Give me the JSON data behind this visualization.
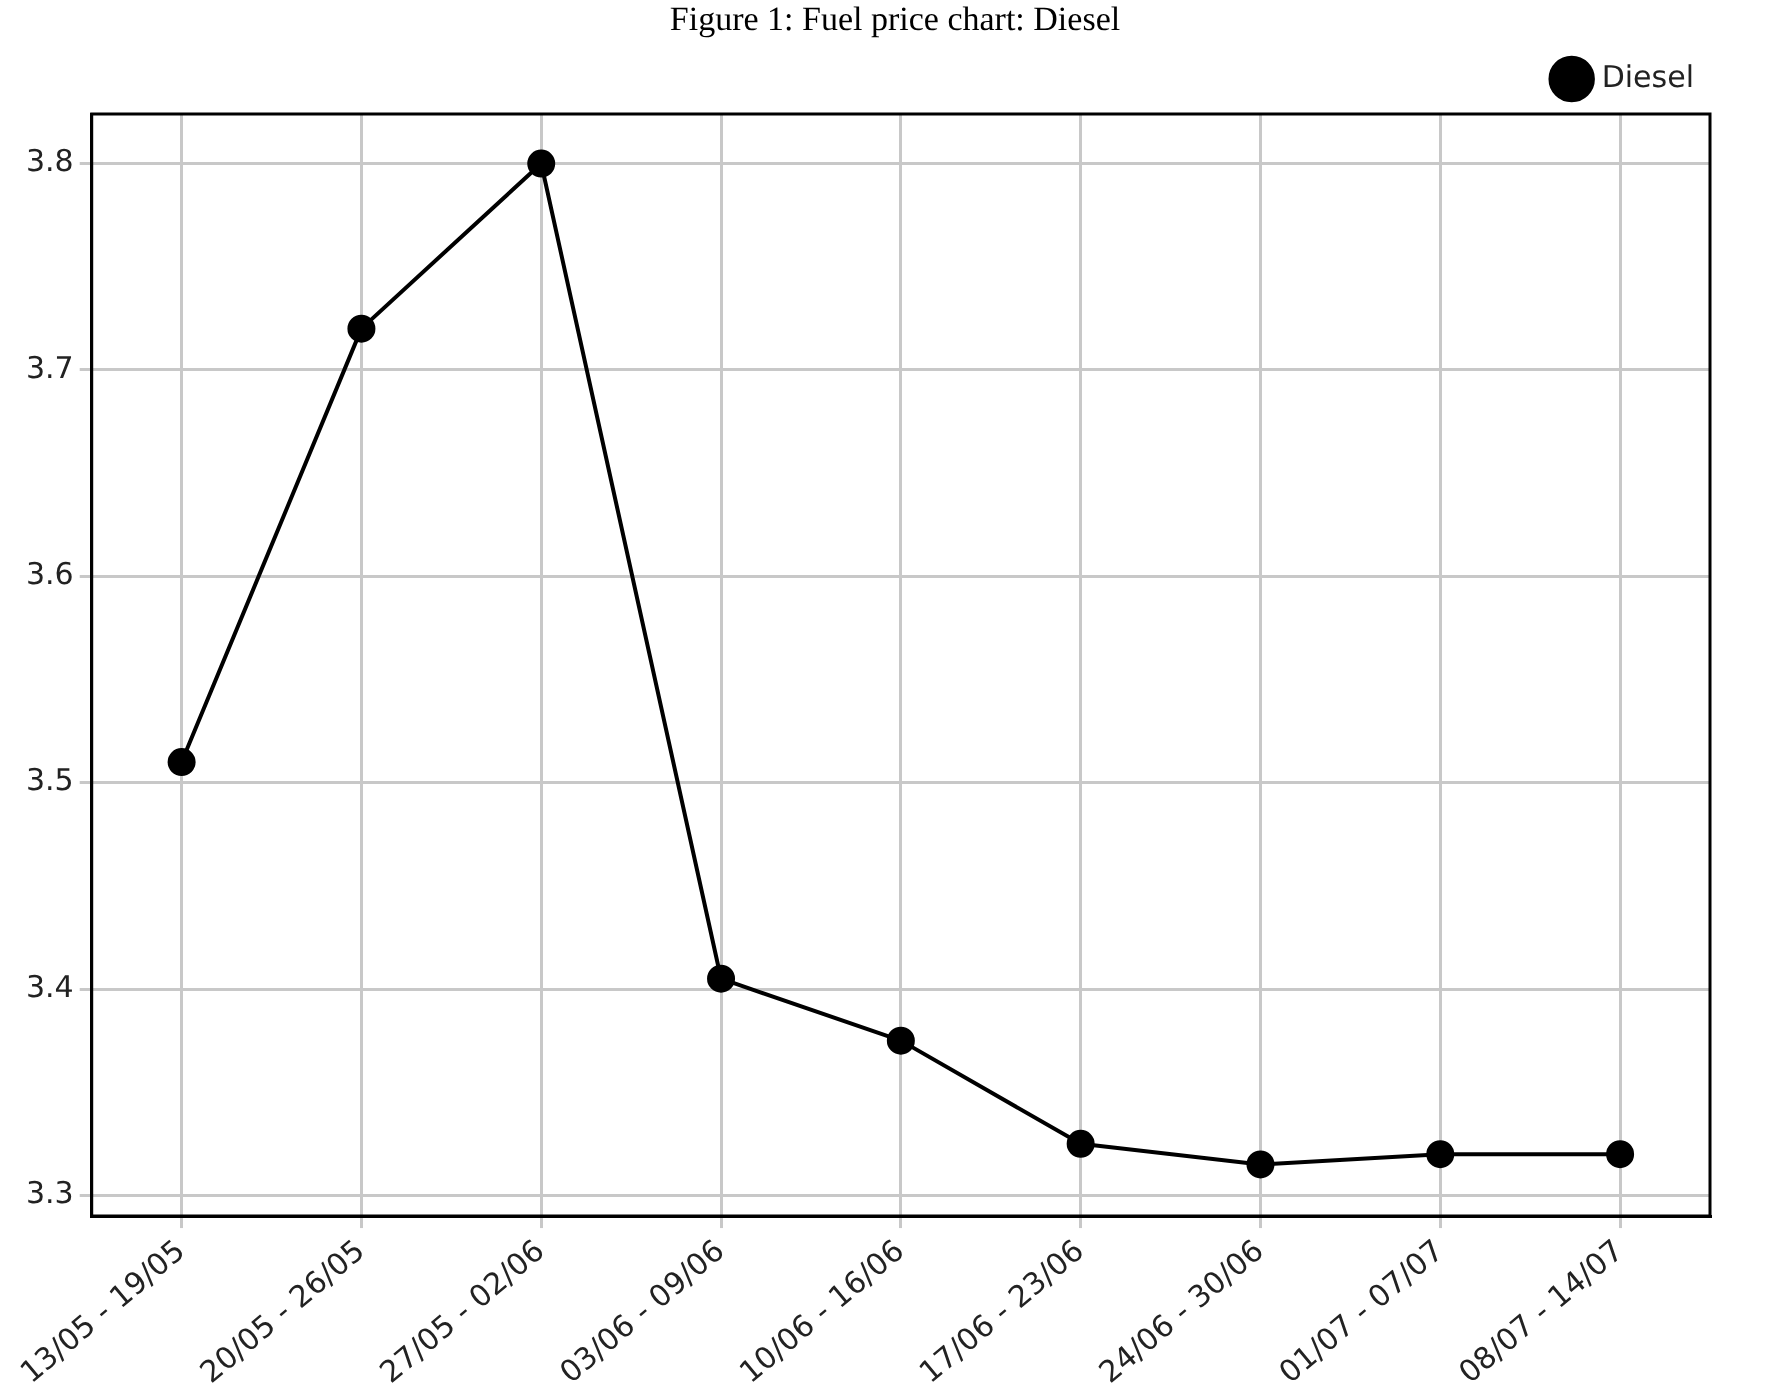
{
  "chart_data": {
    "type": "line",
    "title": "Figure 1: Fuel price chart: Diesel",
    "categories": [
      "13/05 - 19/05",
      "20/05 - 26/05",
      "27/05 - 02/06",
      "03/06 - 09/06",
      "10/06 - 16/06",
      "17/06 - 23/06",
      "24/06 - 30/06",
      "01/07 - 07/07",
      "08/07 - 14/07"
    ],
    "series": [
      {
        "name": "Diesel",
        "color": "#000000",
        "values": [
          3.51,
          3.72,
          3.8,
          3.405,
          3.375,
          3.325,
          3.315,
          3.32,
          3.32
        ]
      }
    ],
    "ylim": [
      3.29,
      3.824
    ],
    "yticks": [
      {
        "value": 3.3,
        "label": "3.3"
      },
      {
        "value": 3.4,
        "label": "3.4"
      },
      {
        "value": 3.5,
        "label": "3.5"
      },
      {
        "value": 3.6,
        "label": "3.6"
      },
      {
        "value": 3.7,
        "label": "3.7"
      },
      {
        "value": 3.8,
        "label": "3.8"
      }
    ],
    "grid": true,
    "legend": "top right",
    "marker": "circle",
    "line_style": "solid"
  }
}
